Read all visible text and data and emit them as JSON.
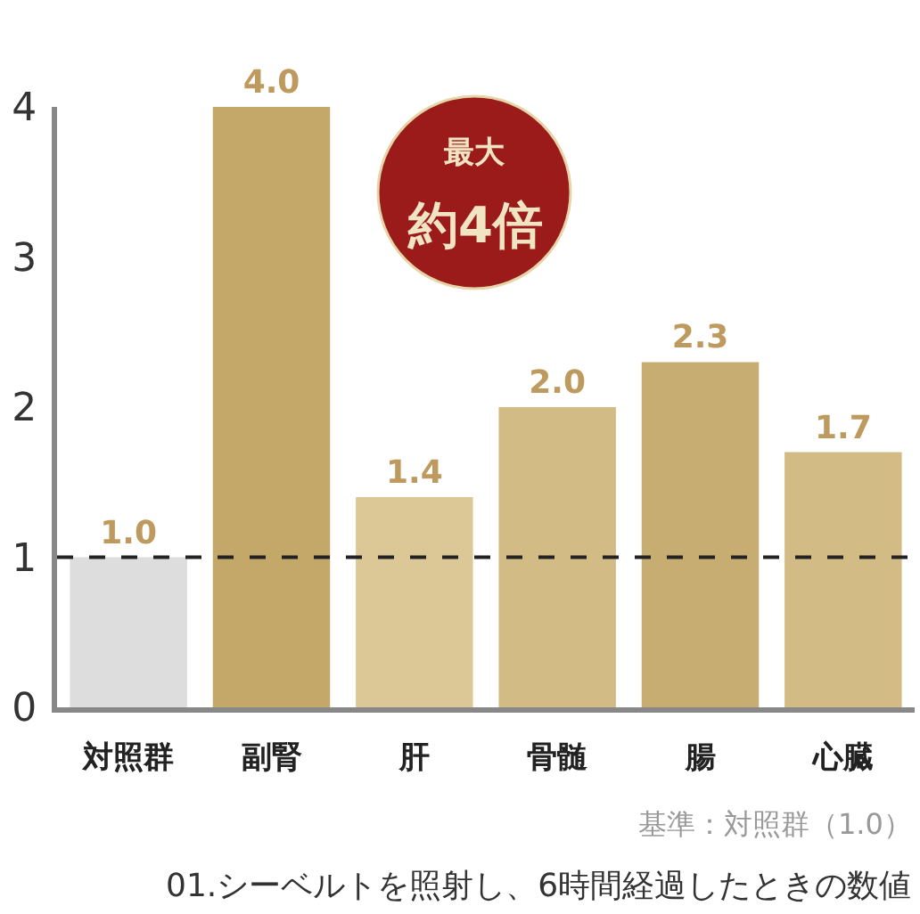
{
  "chart_data": {
    "type": "bar",
    "categories": [
      "対照群",
      "副腎",
      "肝",
      "骨髄",
      "腸",
      "心臓"
    ],
    "values": [
      1.0,
      4.0,
      1.4,
      2.0,
      2.3,
      1.7
    ],
    "value_labels": [
      "1.0",
      "4.0",
      "1.4",
      "2.0",
      "2.3",
      "1.7"
    ],
    "colors": [
      "#dddddd",
      "#c4a86a",
      "#dcc796",
      "#d2bb84",
      "#c8ad72",
      "#d2bb84"
    ],
    "ylim": [
      0,
      4
    ],
    "yticks": [
      0,
      1,
      2,
      3,
      4
    ],
    "ref_lines": [
      {
        "axis": "y",
        "value": 1,
        "color": "#222222",
        "line_style": "dashed"
      }
    ],
    "annotations": [
      "最大",
      "約4倍",
      "基準：対照群（1.0）",
      "01.シーベルトを照射し、6時間経過したときの数値"
    ]
  }
}
